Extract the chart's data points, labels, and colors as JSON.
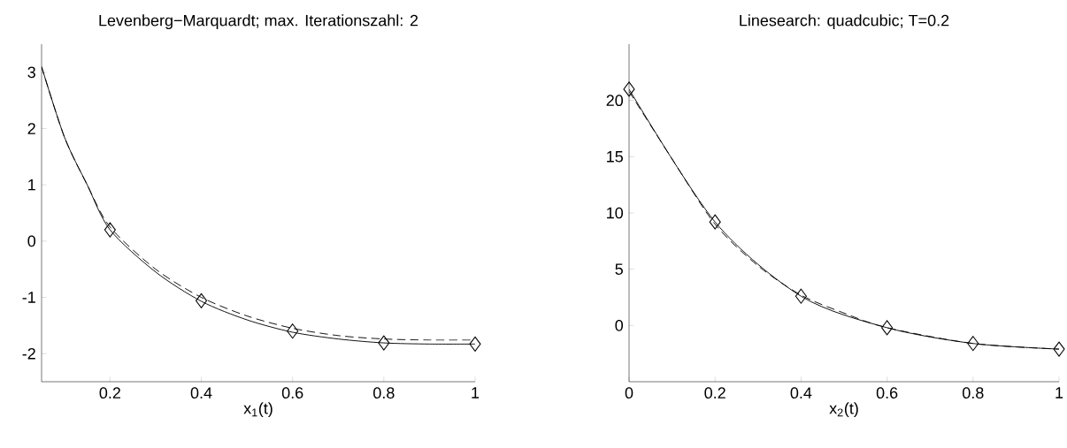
{
  "chart_data": [
    {
      "type": "line",
      "title": "Levenberg−Marquardt; max. Iterationszahl: 2",
      "xlabel": "x$_{1}$(t)",
      "xlim": [
        0.05,
        1
      ],
      "ylim": [
        -2.5,
        3.5
      ],
      "xticks": [
        0.2,
        0.4,
        0.6,
        0.8,
        1
      ],
      "yticks": [
        -2,
        -1,
        0,
        1,
        2,
        3
      ],
      "grid": false,
      "series": [
        {
          "line_style": "solid",
          "color": "#000000",
          "x": [
            0.05,
            0.1,
            0.15,
            0.2,
            0.3,
            0.4,
            0.5,
            0.6,
            0.7,
            0.8,
            0.9,
            1.0
          ],
          "values": [
            3.1,
            1.85,
            1.0,
            0.2,
            -0.55,
            -1.07,
            -1.4,
            -1.62,
            -1.74,
            -1.81,
            -1.83,
            -1.83
          ]
        },
        {
          "line_style": "dashed",
          "color": "#000000",
          "x": [
            0.05,
            0.1,
            0.15,
            0.2,
            0.3,
            0.4,
            0.5,
            0.6,
            0.7,
            0.8,
            0.9,
            1.0
          ],
          "values": [
            3.1,
            1.85,
            1.0,
            0.25,
            -0.5,
            -1.0,
            -1.33,
            -1.55,
            -1.68,
            -1.74,
            -1.76,
            -1.76
          ]
        },
        {
          "type": "scatter",
          "marker": "diamond",
          "color": "#000000",
          "x": [
            0.2,
            0.4,
            0.6,
            0.8,
            1.0
          ],
          "values": [
            0.2,
            -1.06,
            -1.6,
            -1.81,
            -1.83
          ]
        }
      ]
    },
    {
      "type": "line",
      "title": "Linesearch: quadcubic; T=0.2",
      "xlabel": "x$_{2}$(t)",
      "xlim": [
        0,
        1
      ],
      "ylim": [
        -5,
        25
      ],
      "xticks": [
        0,
        0.2,
        0.4,
        0.6,
        0.8,
        1
      ],
      "yticks": [
        0,
        5,
        10,
        15,
        20
      ],
      "grid": false,
      "series": [
        {
          "line_style": "solid",
          "color": "#000000",
          "x": [
            0,
            0.2,
            0.4,
            0.6,
            0.8,
            1.0
          ],
          "values": [
            21.0,
            9.2,
            2.6,
            -0.2,
            -1.6,
            -2.1
          ]
        },
        {
          "line_style": "dashed",
          "color": "#000000",
          "x": [
            0,
            0.1,
            0.2,
            0.3,
            0.4,
            0.5,
            0.6,
            0.8,
            1.0
          ],
          "values": [
            20.8,
            14.8,
            9.0,
            5.3,
            2.7,
            1.1,
            -0.2,
            -1.6,
            -2.1
          ]
        },
        {
          "type": "scatter",
          "marker": "diamond",
          "color": "#000000",
          "x": [
            0,
            0.2,
            0.4,
            0.6,
            0.8,
            1.0
          ],
          "values": [
            21.0,
            9.2,
            2.6,
            -0.2,
            -1.6,
            -2.1
          ]
        }
      ]
    }
  ]
}
